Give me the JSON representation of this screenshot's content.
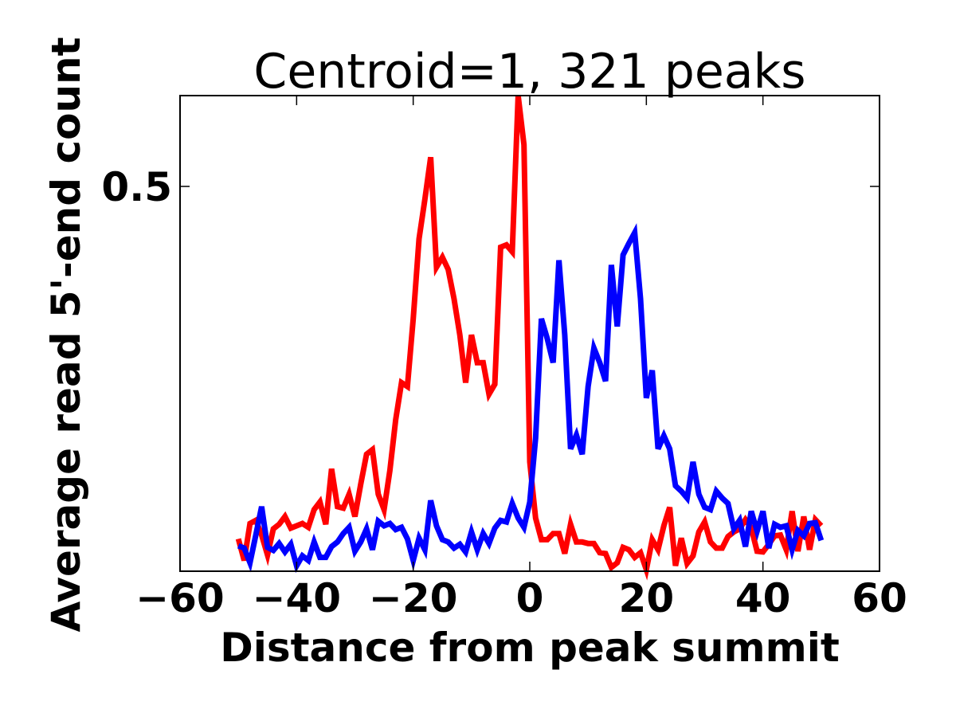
{
  "chart_data": {
    "type": "line",
    "title": "Centroid=1, 321 peaks",
    "xlabel": "Distance from peak summit",
    "ylabel": "Average read 5'-end count",
    "xlim": [
      -60,
      60
    ],
    "ylim": [
      0,
      0.618
    ],
    "xticks": [
      "−60",
      "−40",
      "−20",
      "0",
      "20",
      "40",
      "60"
    ],
    "xtick_values": [
      -60,
      -40,
      -20,
      0,
      20,
      40,
      60
    ],
    "yticks": [
      "0.5"
    ],
    "ytick_values": [
      0.5
    ],
    "grid": false,
    "legend": "none",
    "x": [
      -50,
      -49,
      -48,
      -47,
      -46,
      -45,
      -44,
      -43,
      -42,
      -41,
      -40,
      -39,
      -38,
      -37,
      -36,
      -35,
      -34,
      -33,
      -32,
      -31,
      -30,
      -29,
      -28,
      -27,
      -26,
      -25,
      -24,
      -23,
      -22,
      -21,
      -20,
      -19,
      -18,
      -17,
      -16,
      -15,
      -14,
      -13,
      -12,
      -11,
      -10,
      -9,
      -8,
      -7,
      -6,
      -5,
      -4,
      -3,
      -2,
      -1,
      0,
      1,
      2,
      3,
      4,
      5,
      6,
      7,
      8,
      9,
      10,
      11,
      12,
      13,
      14,
      15,
      16,
      17,
      18,
      19,
      20,
      21,
      22,
      23,
      24,
      25,
      26,
      27,
      28,
      29,
      30,
      31,
      32,
      33,
      34,
      35,
      36,
      37,
      38,
      39,
      40,
      41,
      42,
      43,
      44,
      45,
      46,
      47,
      48,
      49,
      50
    ],
    "series": [
      {
        "color": "#ff0000",
        "values": [
          0.042,
          0.014,
          0.062,
          0.066,
          0.047,
          0.021,
          0.055,
          0.061,
          0.071,
          0.056,
          0.059,
          0.062,
          0.057,
          0.08,
          0.09,
          0.061,
          0.133,
          0.084,
          0.082,
          0.1,
          0.071,
          0.113,
          0.152,
          0.158,
          0.1,
          0.08,
          0.131,
          0.197,
          0.245,
          0.24,
          0.328,
          0.432,
          0.483,
          0.538,
          0.395,
          0.408,
          0.392,
          0.354,
          0.307,
          0.245,
          0.307,
          0.271,
          0.271,
          0.23,
          0.243,
          0.421,
          0.424,
          0.415,
          0.618,
          0.554,
          0.142,
          0.069,
          0.041,
          0.041,
          0.049,
          0.049,
          0.023,
          0.061,
          0.038,
          0.038,
          0.036,
          0.036,
          0.024,
          0.023,
          0.005,
          0.011,
          0.031,
          0.028,
          0.018,
          0.024,
          0.002,
          0.041,
          0.028,
          0.059,
          0.083,
          0.007,
          0.043,
          0.01,
          0.02,
          0.051,
          0.064,
          0.038,
          0.03,
          0.03,
          0.045,
          0.051,
          0.055,
          0.067,
          0.056,
          0.026,
          0.025,
          0.035,
          0.046,
          0.047,
          0.028,
          0.078,
          0.026,
          0.071,
          0.028,
          0.067,
          0.059
        ]
      },
      {
        "color": "#0000ff",
        "values": [
          0.033,
          0.03,
          0.011,
          0.047,
          0.084,
          0.031,
          0.027,
          0.036,
          0.025,
          0.035,
          0.007,
          0.02,
          0.014,
          0.038,
          0.018,
          0.018,
          0.032,
          0.038,
          0.049,
          0.057,
          0.026,
          0.038,
          0.055,
          0.028,
          0.065,
          0.059,
          0.062,
          0.054,
          0.057,
          0.042,
          0.014,
          0.043,
          0.028,
          0.092,
          0.059,
          0.041,
          0.038,
          0.03,
          0.035,
          0.025,
          0.051,
          0.028,
          0.049,
          0.036,
          0.056,
          0.066,
          0.064,
          0.088,
          0.069,
          0.057,
          0.09,
          0.173,
          0.328,
          0.302,
          0.271,
          0.404,
          0.307,
          0.159,
          0.177,
          0.152,
          0.24,
          0.29,
          0.271,
          0.247,
          0.398,
          0.318,
          0.411,
          0.426,
          0.44,
          0.354,
          0.225,
          0.261,
          0.159,
          0.176,
          0.159,
          0.111,
          0.104,
          0.095,
          0.142,
          0.1,
          0.083,
          0.08,
          0.104,
          0.095,
          0.088,
          0.055,
          0.066,
          0.032,
          0.078,
          0.052,
          0.078,
          0.03,
          0.061,
          0.057,
          0.059,
          0.028,
          0.053,
          0.046,
          0.062,
          0.063,
          0.04
        ]
      }
    ]
  }
}
